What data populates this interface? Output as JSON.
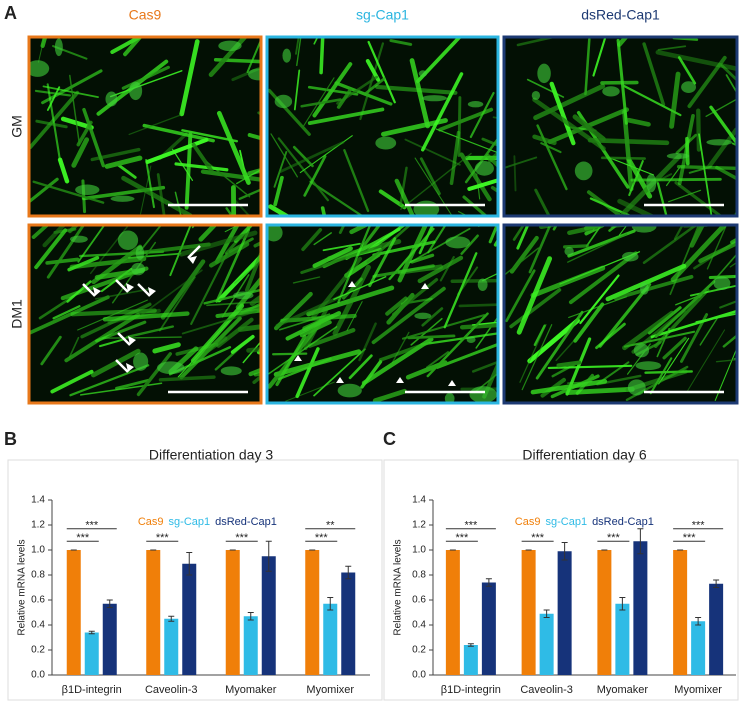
{
  "figure": {
    "panel_labels": [
      "A",
      "B",
      "C"
    ],
    "columns": [
      {
        "label": "Cas9",
        "color": "#e8781a"
      },
      {
        "label": "sg-Cap1",
        "color": "#2bb5e0"
      },
      {
        "label": "dsRed-Cap1",
        "color": "#1d3a73"
      }
    ],
    "rows": [
      "GM",
      "DM1"
    ]
  },
  "chart_data": [
    {
      "type": "bar",
      "title": "Differentiation  day 3",
      "ylabel": "Relative  mRNA levels",
      "categories": [
        "β1D-integrin",
        "Caveolin-3",
        "Myomaker",
        "Myomixer"
      ],
      "series": [
        {
          "name": "Cas9",
          "color": "#f07f09",
          "values": [
            1.0,
            1.0,
            1.0,
            1.0
          ],
          "errors": [
            0,
            0,
            0,
            0
          ]
        },
        {
          "name": "sg-Cap1",
          "color": "#2fbbe6",
          "values": [
            0.34,
            0.45,
            0.47,
            0.57
          ],
          "errors": [
            0.01,
            0.02,
            0.03,
            0.05
          ]
        },
        {
          "name": "dsRed-Cap1",
          "color": "#16337a",
          "values": [
            0.57,
            0.89,
            0.95,
            0.82
          ],
          "errors": [
            0.03,
            0.09,
            0.12,
            0.05
          ]
        }
      ],
      "ylim": [
        0,
        1.4
      ],
      "yticks": [
        {
          "value": 0,
          "label": "0.0"
        },
        0.2,
        0.4,
        0.6,
        0.8,
        {
          "value": 1,
          "label": "1.0"
        },
        1.2,
        1.4
      ],
      "significance": [
        {
          "category": 0,
          "series": 1,
          "label": "***"
        },
        {
          "category": 0,
          "series": 2,
          "label": "***"
        },
        {
          "category": 1,
          "series": 1,
          "label": "***"
        },
        {
          "category": 2,
          "series": 1,
          "label": "***"
        },
        {
          "category": 3,
          "series": 1,
          "label": "***"
        },
        {
          "category": 3,
          "series": 2,
          "label": "**"
        }
      ]
    },
    {
      "type": "bar",
      "title": "Differentiation  day 6",
      "ylabel": "Relative  mRNA levels",
      "categories": [
        "β1D-integrin",
        "Caveolin-3",
        "Myomaker",
        "Myomixer"
      ],
      "series": [
        {
          "name": "Cas9",
          "color": "#f07f09",
          "values": [
            1.0,
            1.0,
            1.0,
            1.0
          ],
          "errors": [
            0,
            0,
            0,
            0
          ]
        },
        {
          "name": "sg-Cap1",
          "color": "#2fbbe6",
          "values": [
            0.24,
            0.49,
            0.57,
            0.43
          ],
          "errors": [
            0.01,
            0.03,
            0.05,
            0.03
          ]
        },
        {
          "name": "dsRed-Cap1",
          "color": "#16337a",
          "values": [
            0.74,
            0.99,
            1.07,
            0.73
          ],
          "errors": [
            0.03,
            0.07,
            0.1,
            0.03
          ]
        }
      ],
      "ylim": [
        0,
        1.4
      ],
      "yticks": [
        {
          "value": 0,
          "label": "0.0"
        },
        0.2,
        0.4,
        0.6,
        0.8,
        {
          "value": 1,
          "label": "1.0"
        },
        1.2,
        1.4
      ],
      "significance": [
        {
          "category": 0,
          "series": 1,
          "label": "***"
        },
        {
          "category": 0,
          "series": 2,
          "label": "***"
        },
        {
          "category": 1,
          "series": 1,
          "label": "***"
        },
        {
          "category": 2,
          "series": 1,
          "label": "***"
        },
        {
          "category": 3,
          "series": 1,
          "label": "***"
        },
        {
          "category": 3,
          "series": 2,
          "label": "***"
        }
      ]
    }
  ]
}
